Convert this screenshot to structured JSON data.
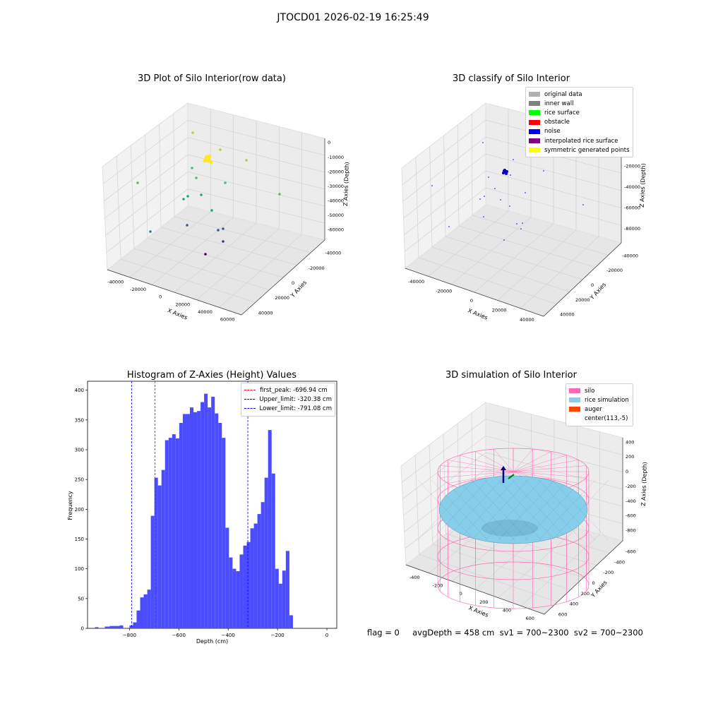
{
  "header": {
    "title": "JTOCD01 2026-02-19 16:25:49"
  },
  "footer": {
    "text": "flag = 0     avgDepth = 458 cm  sv1 = 700~2300  sv2 = 700~2300"
  },
  "colors": {
    "hist_bar": "#4c4cff",
    "first_peak": "#ff0000",
    "limits": "#0000ff",
    "silo": "#ff69b4",
    "rice": "#87ceeb",
    "auger": "#ff4500"
  },
  "chart_data": [
    {
      "type": "scatter",
      "title": "3D Plot of Silo Interior(row data)",
      "xlabel": "X Axies",
      "ylabel": "Y Axies",
      "zlabel": "Z Axies (Depth)",
      "x_ticks": [
        "-40000",
        "-20000",
        "0",
        "20000",
        "40000",
        "60000"
      ],
      "y_ticks": [
        "-40000",
        "-20000",
        "0",
        "20000",
        "40000"
      ],
      "z_ticks": [
        "0",
        "-10000",
        "-20000",
        "-30000",
        "-40000",
        "-50000",
        "-60000"
      ],
      "colormap": "viridis"
    },
    {
      "type": "scatter",
      "title": "3D classify of Silo Interior",
      "xlabel": "X Axies",
      "ylabel": "Y Axies",
      "zlabel": "Z Axies (Depth)",
      "x_ticks": [
        "-40000",
        "-20000",
        "0",
        "20000",
        "40000"
      ],
      "y_ticks": [
        "-40000",
        "-20000",
        "0",
        "20000",
        "40000"
      ],
      "z_ticks": [
        "0",
        "-20000",
        "-40000",
        "-60000",
        "-80000"
      ],
      "legend": [
        {
          "label": "original data",
          "color": "#b0b0b0"
        },
        {
          "label": "inner wall",
          "color": "#808080"
        },
        {
          "label": "rice surface",
          "color": "#00ff00"
        },
        {
          "label": "obstacle",
          "color": "#ff0000"
        },
        {
          "label": "noise",
          "color": "#0000ff"
        },
        {
          "label": "interpolated rice surface",
          "color": "#800080"
        },
        {
          "label": "symmetric generated points",
          "color": "#ffff00"
        }
      ],
      "legend_position": "top-right"
    },
    {
      "type": "bar",
      "title": "Histogram of Z-Axies (Height) Values",
      "xlabel": "Depth (cm)",
      "ylabel": "Frequency",
      "xlim": [
        -970,
        40
      ],
      "ylim": [
        0,
        415
      ],
      "x_ticks": [
        -800,
        -600,
        -400,
        -200,
        0
      ],
      "y_ticks": [
        0,
        50,
        100,
        150,
        200,
        250,
        300,
        350,
        400
      ],
      "bin_width": 14.4,
      "bins": [
        [
          -940,
          2
        ],
        [
          -900,
          3
        ],
        [
          -880,
          4
        ],
        [
          -860,
          4
        ],
        [
          -840,
          5
        ],
        [
          -800,
          5
        ],
        [
          -785.6,
          10
        ],
        [
          -771.2,
          30
        ],
        [
          -756.8,
          52
        ],
        [
          -742.4,
          57
        ],
        [
          -728,
          65
        ],
        [
          -713.6,
          189
        ],
        [
          -699.2,
          253
        ],
        [
          -684.8,
          240
        ],
        [
          -670.4,
          266
        ],
        [
          -656,
          316
        ],
        [
          -641.6,
          320
        ],
        [
          -627.2,
          326
        ],
        [
          -612.8,
          319
        ],
        [
          -598.4,
          345
        ],
        [
          -584,
          360
        ],
        [
          -569.6,
          360
        ],
        [
          -555.2,
          371
        ],
        [
          -540.8,
          363
        ],
        [
          -526.4,
          365
        ],
        [
          -512,
          380
        ],
        [
          -497.6,
          394
        ],
        [
          -483.2,
          371
        ],
        [
          -468.8,
          389
        ],
        [
          -454.4,
          361
        ],
        [
          -440,
          345
        ],
        [
          -425.6,
          320
        ],
        [
          -411.2,
          169
        ],
        [
          -396.8,
          119
        ],
        [
          -382.4,
          100
        ],
        [
          -368,
          96
        ],
        [
          -353.6,
          124
        ],
        [
          -339.2,
          139
        ],
        [
          -324.8,
          145
        ],
        [
          -310.4,
          168
        ],
        [
          -296,
          176
        ],
        [
          -281.6,
          192
        ],
        [
          -267.2,
          212
        ],
        [
          -252.8,
          253
        ],
        [
          -238.4,
          333
        ],
        [
          -224,
          260
        ],
        [
          -209.6,
          100
        ],
        [
          -195.2,
          75
        ],
        [
          -180.8,
          97
        ],
        [
          -166.4,
          130
        ],
        [
          -152,
          22
        ]
      ],
      "lines": [
        {
          "label": "first_peak: -696.94 cm",
          "x": -696.94,
          "color": "#ff0000"
        },
        {
          "label": "Upper_limit: -320.38 cm",
          "x": -320.38,
          "color": "#0000ff"
        },
        {
          "label": "Lower_limit: -791.08 cm",
          "x": -791.08,
          "color": "#0000ff"
        }
      ],
      "legend_position": "top-right"
    },
    {
      "type": "surface",
      "title": "3D simulation of Silo Interior",
      "xlabel": "X Axies",
      "ylabel": "Y Axies",
      "zlabel": "Z Axies (Depth)",
      "x_ticks": [
        "-400",
        "-200",
        "0",
        "200",
        "400",
        "600"
      ],
      "y_ticks": [
        "-600",
        "-400",
        "-200",
        "0",
        "200",
        "400",
        "600"
      ],
      "z_ticks": [
        "400",
        "200",
        "0",
        "-200",
        "-400",
        "-600",
        "-800"
      ],
      "legend": [
        {
          "label": "silo",
          "color": "#ff69b4"
        },
        {
          "label": "rice simulation",
          "color": "#87ceeb"
        },
        {
          "label": "auger",
          "color": "#ff4500"
        },
        {
          "label": "center(113,-5)",
          "color": "#ffffff"
        }
      ],
      "legend_position": "top-right"
    }
  ]
}
